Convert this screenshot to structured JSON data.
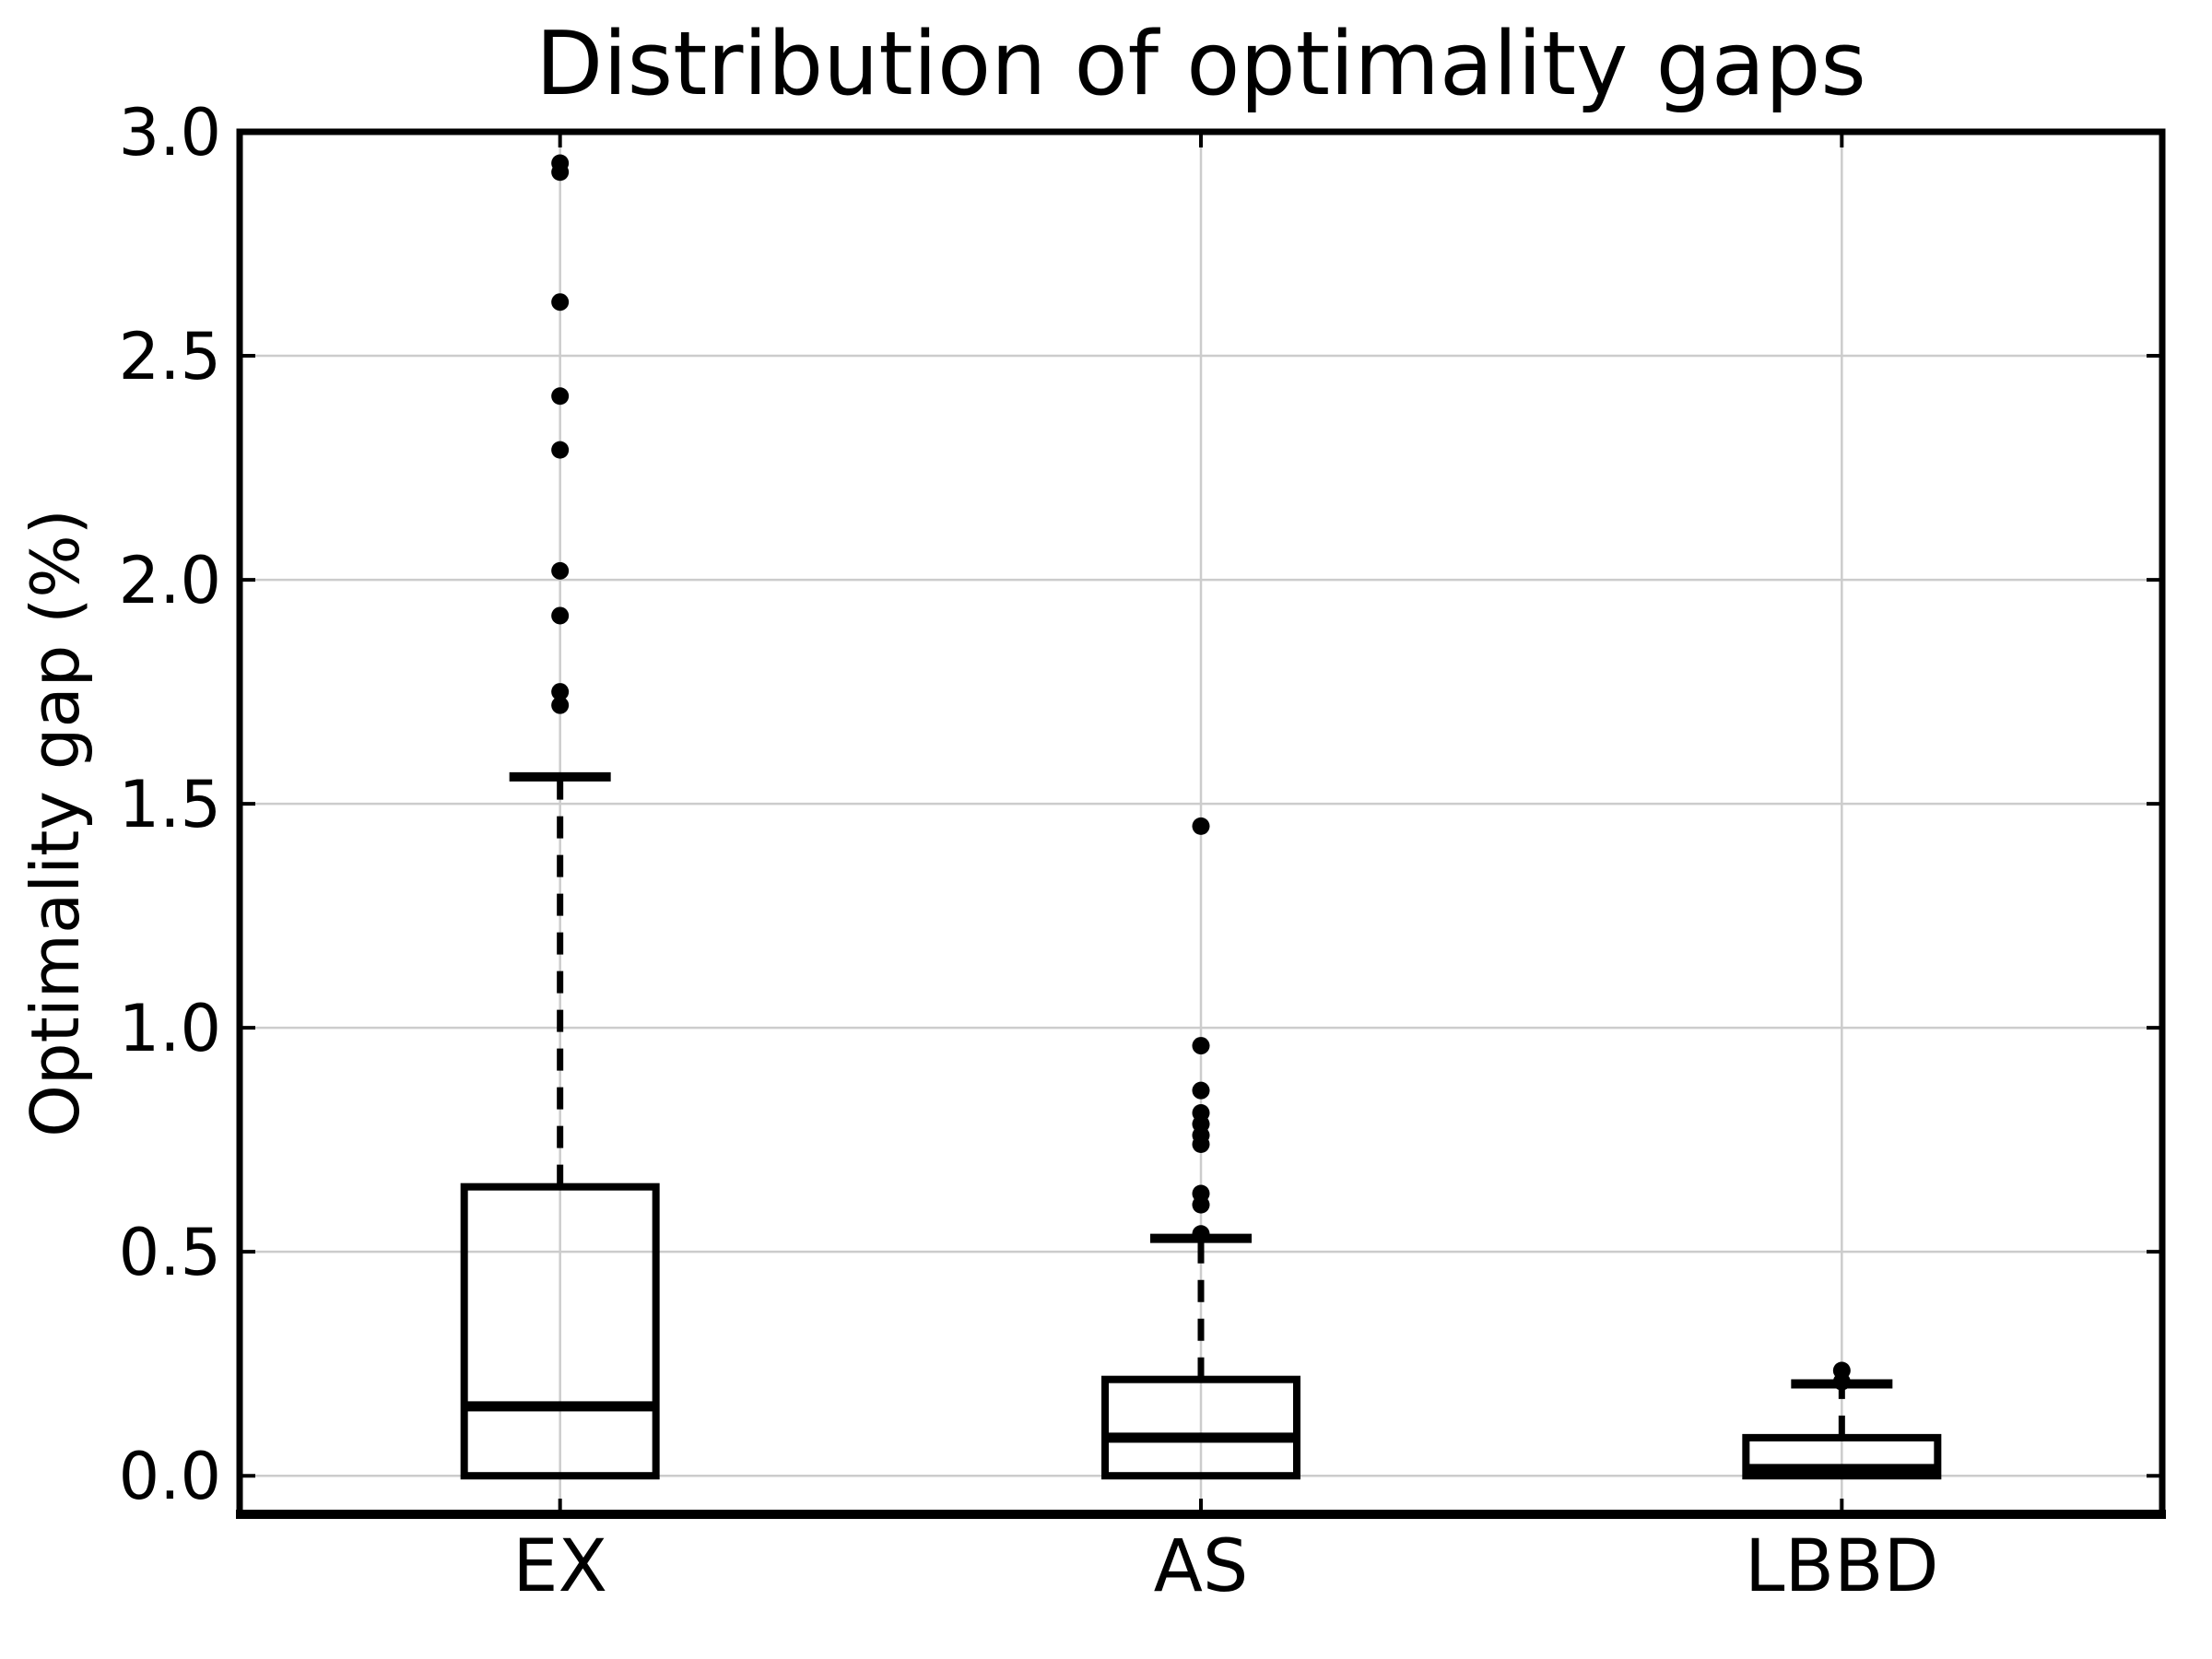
{
  "chart_data": {
    "type": "boxplot",
    "title": "Distribution of optimality gaps",
    "ylabel": "Optimality gap (%)",
    "xlabel": "",
    "categories": [
      "EX",
      "AS",
      "LBBD"
    ],
    "x_positions": [
      1,
      2,
      3
    ],
    "xlim": [
      0.5,
      3.5
    ],
    "ylim": [
      -0.086,
      3.0
    ],
    "yticks": [
      0.0,
      0.5,
      1.0,
      1.5,
      2.0,
      2.5,
      3.0
    ],
    "ytick_labels": [
      "0.0",
      "0.5",
      "1.0",
      "1.5",
      "2.0",
      "2.5",
      "3.0"
    ],
    "grid": true,
    "legend": false,
    "series": [
      {
        "name": "EX",
        "q1": 0.0,
        "median": 0.155,
        "q3": 0.645,
        "whisker_low": 0.0,
        "whisker_high": 1.56,
        "outliers": [
          1.72,
          1.75,
          1.92,
          2.02,
          2.29,
          2.41,
          2.62,
          2.91,
          2.93
        ]
      },
      {
        "name": "AS",
        "q1": 0.0,
        "median": 0.085,
        "q3": 0.215,
        "whisker_low": 0.0,
        "whisker_high": 0.53,
        "outliers": [
          0.54,
          0.605,
          0.63,
          0.74,
          0.76,
          0.785,
          0.81,
          0.86,
          0.96,
          1.45
        ]
      },
      {
        "name": "LBBD",
        "q1": 0.0,
        "median": 0.015,
        "q3": 0.085,
        "whisker_low": 0.0,
        "whisker_high": 0.205,
        "outliers": [
          0.21,
          0.235
        ]
      }
    ],
    "colors": {
      "foreground": "#000000",
      "background": "#ffffff",
      "grid": "#cccccc"
    }
  }
}
